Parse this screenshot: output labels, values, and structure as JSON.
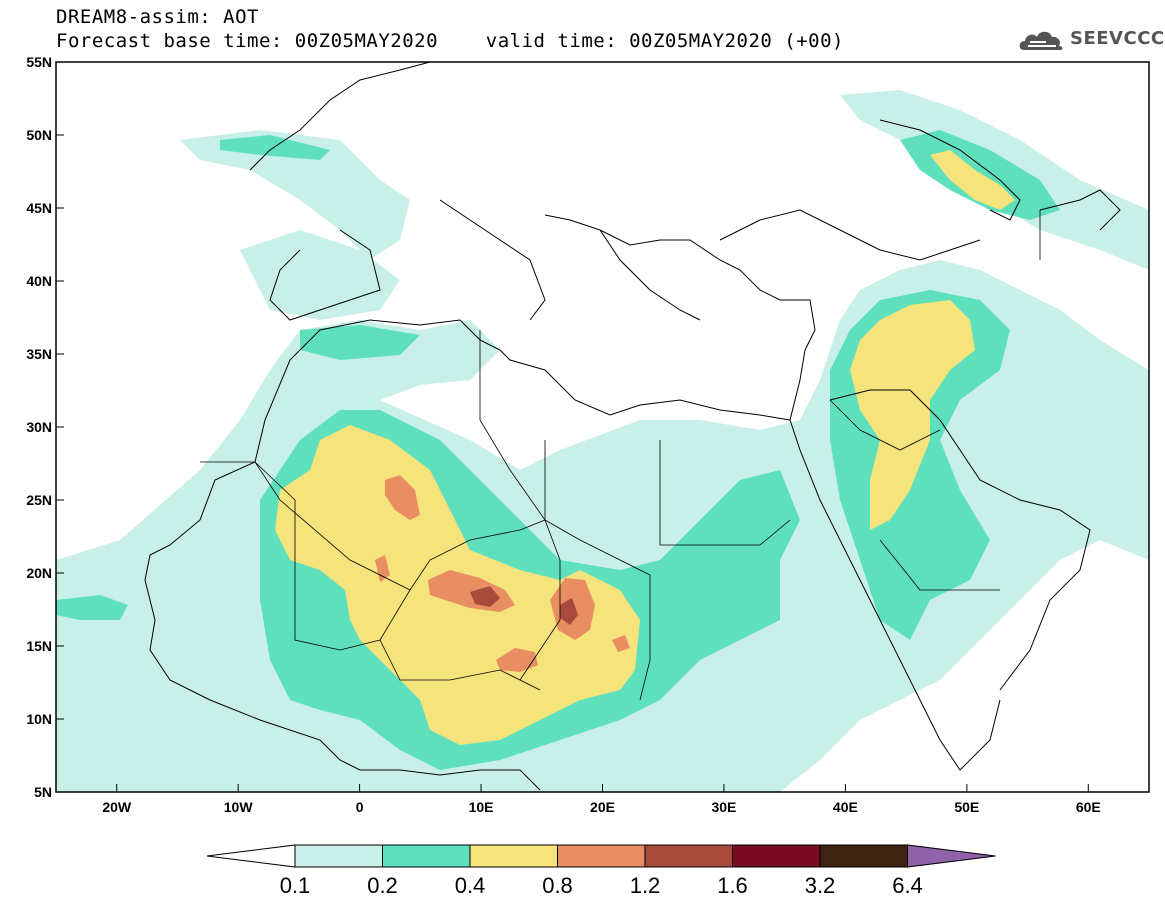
{
  "title": {
    "line1": "DREAM8-assim: AOT",
    "line2": "Forecast base time: 00Z05MAY2020    valid time: 00Z05MAY2020 (+00)"
  },
  "logo": {
    "icon": "cloud-icon",
    "text": "SEEVCCC"
  },
  "map": {
    "lon_range": [
      -25,
      65
    ],
    "lat_range": [
      5,
      55
    ],
    "lon_ticks": [
      "20W",
      "10W",
      "0",
      "10E",
      "20E",
      "30E",
      "40E",
      "50E",
      "60E"
    ],
    "lat_ticks": [
      "5N",
      "10N",
      "15N",
      "20N",
      "25N",
      "30N",
      "35N",
      "40N",
      "45N",
      "50N",
      "55N"
    ]
  },
  "colorbar": {
    "labels": [
      "0.1",
      "0.2",
      "0.4",
      "0.8",
      "1.2",
      "1.6",
      "3.2",
      "6.4"
    ],
    "colors": [
      "#ffffff",
      "#c9f0e8",
      "#5fe0bc",
      "#f5e37b",
      "#e88e62",
      "#a84a3c",
      "#7a0a22",
      "#3b2412",
      "#8f62a8"
    ]
  }
}
